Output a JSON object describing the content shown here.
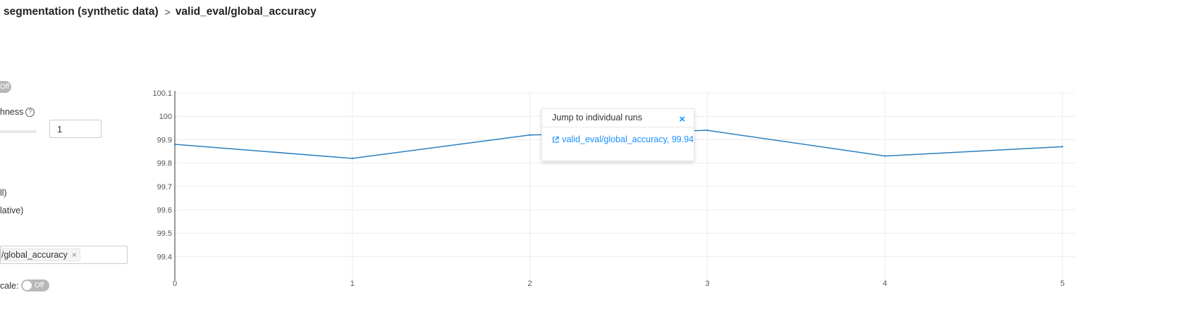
{
  "breadcrumb": {
    "experiment": "segmentation (synthetic data)",
    "separator": ">",
    "metric": "valid_eval/global_accuracy"
  },
  "sidebar": {
    "top_toggle": {
      "label": "Off",
      "state": "off"
    },
    "smoothness": {
      "label": "hness",
      "value": "1",
      "slider_value": 0
    },
    "x_axis_options": [
      {
        "label": "ll)"
      },
      {
        "label": "lative)"
      }
    ],
    "metric_tag": {
      "label": "/global_accuracy",
      "remove": "×"
    },
    "log_scale": {
      "label": "cale:",
      "toggle_label": "Off",
      "state": "off"
    }
  },
  "tooltip": {
    "title": "Jump to individual runs",
    "close": "×",
    "link_text": "valid_eval/global_accuracy, 99.94",
    "icon": "external-link-icon"
  },
  "chart_data": {
    "type": "line",
    "title": "",
    "xlabel": "",
    "ylabel": "",
    "x_ticks": [
      0,
      1,
      2,
      3,
      4,
      5
    ],
    "y_ticks": [
      "99.4",
      "99.5",
      "99.6",
      "99.7",
      "99.8",
      "99.9",
      "100",
      "100.1"
    ],
    "xlim": [
      0,
      5
    ],
    "ylim": [
      99.3,
      100.1
    ],
    "grid": true,
    "series": [
      {
        "color": "#2a7fc1",
        "x": [
          0,
          1,
          2,
          3,
          4,
          5
        ],
        "y": [
          99.88,
          99.82,
          99.92,
          99.94,
          99.83,
          99.87
        ]
      }
    ]
  }
}
